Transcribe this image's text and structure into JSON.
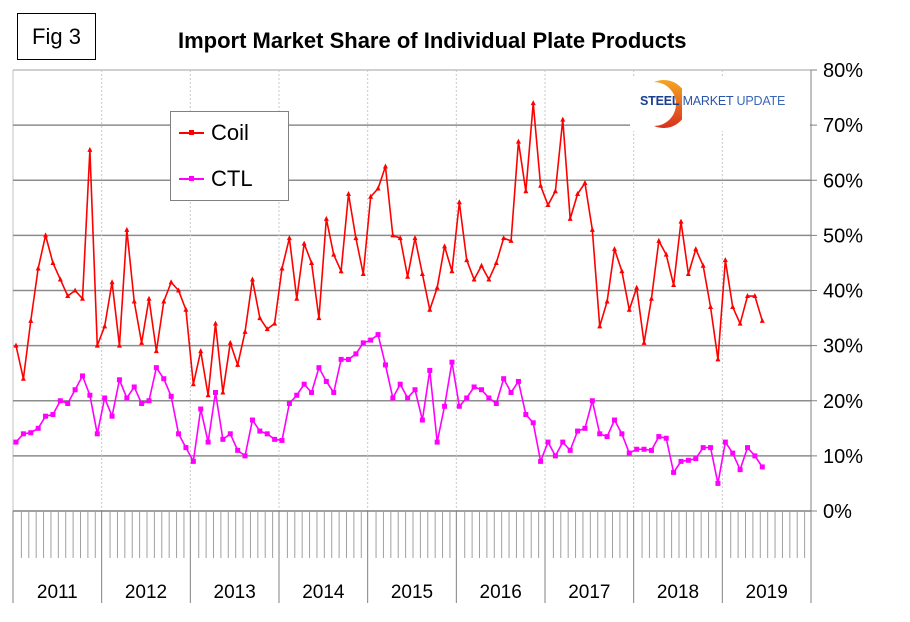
{
  "figure_label": "Fig 3",
  "logo": {
    "part1": "STEEL",
    "part2": "MARKET",
    "part3": "UPDATE",
    "arc_color": "#f07a1a"
  },
  "chart_data": {
    "type": "line",
    "title": "Import Market Share of Individual Plate Products",
    "xlabel": "",
    "ylabel": "",
    "ylim": [
      0,
      80
    ],
    "y_ticks": [
      0,
      10,
      20,
      30,
      40,
      50,
      60,
      70,
      80
    ],
    "y_tick_labels": [
      "0%",
      "10%",
      "20%",
      "30%",
      "40%",
      "50%",
      "60%",
      "70%",
      "80%"
    ],
    "y_axis_side": "right",
    "x_categories": [
      "2011",
      "2012",
      "2013",
      "2014",
      "2015",
      "2016",
      "2017",
      "2018",
      "2019"
    ],
    "x_unit": "month",
    "grid": true,
    "legend_placement": "top-left-center",
    "series": [
      {
        "name": "Coil",
        "color": "#ff0000",
        "marker": "triangle",
        "values": [
          30,
          24,
          34.5,
          44,
          50,
          45,
          42,
          39,
          40,
          38.5,
          65.5,
          30,
          33.5,
          41.5,
          30,
          51,
          38,
          30.5,
          38.5,
          29,
          38,
          41.5,
          40,
          36.5,
          23,
          29,
          21,
          34,
          21.5,
          30.5,
          26.5,
          32.5,
          42,
          35,
          33,
          34,
          44,
          49.5,
          38.5,
          48.5,
          45,
          35,
          53,
          46.5,
          43.5,
          57.5,
          49.5,
          43,
          57,
          58.5,
          62.5,
          50,
          49.5,
          42.5,
          49.5,
          43,
          36.5,
          40.5,
          48,
          43.5,
          56,
          45.5,
          42,
          44.5,
          42,
          45,
          49.5,
          49,
          67,
          58,
          74,
          59,
          55.5,
          58,
          71,
          53,
          57.5,
          59.5,
          51,
          33.5,
          38,
          47.5,
          43.5,
          36.5,
          40.5,
          30.5,
          38.5,
          49,
          46.5,
          41,
          52.5,
          43,
          47.5,
          44.5,
          37,
          27.5,
          45.5,
          37,
          34,
          39,
          39,
          34.5
        ]
      },
      {
        "name": "CTL",
        "color": "#ff00ff",
        "marker": "square",
        "values": [
          12.5,
          14,
          14.2,
          15,
          17.2,
          17.5,
          20,
          19.5,
          22,
          24.5,
          21,
          14,
          20.5,
          17.2,
          23.8,
          20.5,
          22.5,
          19.5,
          20,
          26,
          24,
          20.8,
          14,
          11.5,
          9,
          18.5,
          12.5,
          21.5,
          13,
          14,
          11,
          10,
          16.5,
          14.5,
          14,
          13,
          12.8,
          19.5,
          21,
          23,
          21.5,
          26,
          23.5,
          21.5,
          27.5,
          27.5,
          28.5,
          30.5,
          31,
          32,
          26.5,
          20.5,
          23,
          20.5,
          22,
          16.5,
          25.5,
          12.5,
          19,
          27,
          19,
          20.5,
          22.5,
          22,
          20.5,
          19.5,
          24,
          21.5,
          23.5,
          17.5,
          16,
          9,
          12.5,
          10,
          12.5,
          11,
          14.5,
          15,
          20,
          14,
          13.5,
          16.5,
          14,
          10.5,
          11.2,
          11.2,
          11,
          13.5,
          13.2,
          7,
          9,
          9.2,
          9.5,
          11.5,
          11.5,
          5,
          12.5,
          10.5,
          7.5,
          11.5,
          10,
          8
        ]
      }
    ]
  }
}
